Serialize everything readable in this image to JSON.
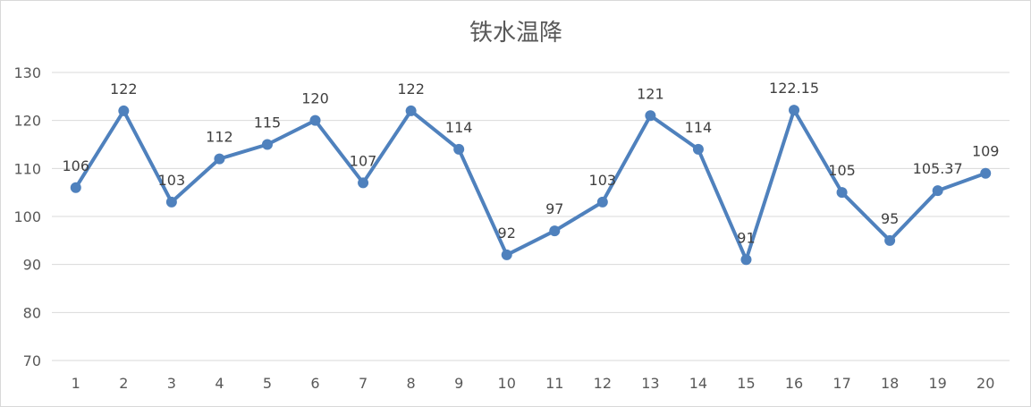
{
  "chart_data": {
    "type": "line",
    "title": "铁水温降",
    "xlabel": "",
    "ylabel": "",
    "categories": [
      "1",
      "2",
      "3",
      "4",
      "5",
      "6",
      "7",
      "8",
      "9",
      "10",
      "11",
      "12",
      "13",
      "14",
      "15",
      "16",
      "17",
      "18",
      "19",
      "20"
    ],
    "series": [
      {
        "values": [
          106,
          122,
          103,
          112,
          115,
          120,
          107,
          122,
          114,
          92,
          97,
          103,
          121,
          114,
          91,
          122.15,
          105,
          95,
          105.37,
          109
        ],
        "labels": [
          "106",
          "122",
          "103",
          "112",
          "115",
          "120",
          "107",
          "122",
          "114",
          "92",
          "97",
          "103",
          "121",
          "114",
          "91",
          "122.15",
          "105",
          "95",
          "105.37",
          "109"
        ],
        "color": "#4f81bd"
      }
    ],
    "ylim": [
      70,
      130
    ],
    "yticks": [
      "70",
      "80",
      "90",
      "100",
      "110",
      "120",
      "130"
    ],
    "grid": true,
    "legend": "none"
  }
}
